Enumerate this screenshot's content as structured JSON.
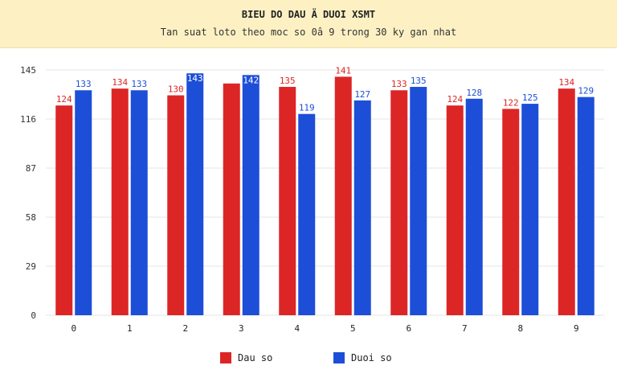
{
  "header": {
    "title": "BIEU DO DAU Ä DUOI XSMT",
    "subtitle": "Tan suat loto theo moc so 0â  9 trong 30 ky gan nhat"
  },
  "colors": {
    "dau": "#dc2626",
    "duoi": "#1d4ed8",
    "header_bg": "#fdf1c4"
  },
  "legend": [
    {
      "label": "Dau so",
      "color": "#dc2626"
    },
    {
      "label": "Duoi so",
      "color": "#1d4ed8"
    }
  ],
  "chart_data": {
    "type": "bar",
    "title": "BIEU DO DAU Ä DUOI XSMT",
    "subtitle": "Tan suat loto theo moc so 0â  9 trong 30 ky gan nhat",
    "xlabel": "",
    "ylabel": "",
    "categories": [
      "0",
      "1",
      "2",
      "3",
      "4",
      "5",
      "6",
      "7",
      "8",
      "9"
    ],
    "series": [
      {
        "name": "Dau so",
        "values": [
          124,
          134,
          130,
          137,
          135,
          141,
          133,
          124,
          122,
          134
        ]
      },
      {
        "name": "Duoi so",
        "values": [
          133,
          133,
          143,
          142,
          119,
          127,
          135,
          128,
          125,
          129
        ]
      }
    ],
    "data_labels_shown": [
      [
        "124",
        "134",
        "130",
        "",
        "135",
        "141",
        "133",
        "124",
        "122",
        "134"
      ],
      [
        "133",
        "133",
        "143",
        "142",
        "119",
        "127",
        "135",
        "128",
        "125",
        "129"
      ]
    ],
    "yticks": [
      "0",
      "29",
      "58",
      "87",
      "116",
      "145"
    ],
    "ylim": [
      0,
      145
    ],
    "grid": true,
    "legend_position": "bottom"
  }
}
